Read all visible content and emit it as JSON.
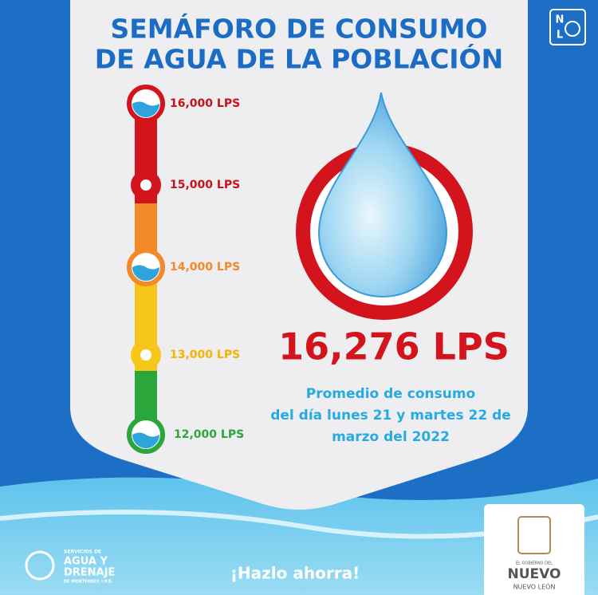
{
  "header": {
    "title_lines": [
      "SEMÁFORO DE CONSUMO",
      "DE AGUA DE LA POBLACIÓN"
    ],
    "corner_logo": [
      "N",
      "L"
    ]
  },
  "levels": [
    "16,000 LPS",
    "15,000 LPS",
    "14,000 LPS",
    "13,000 LPS",
    "12,000 LPS"
  ],
  "reading": {
    "value": "16,276 LPS",
    "description_lines": [
      "Promedio de consumo",
      "del día lunes 21 y martes 22 de",
      "marzo del 2022"
    ]
  },
  "footer": {
    "slogan": "¡Hazlo ahorra!",
    "agency_logo": [
      "SERVICIOS DE",
      "AGUA Y",
      "DRENAJE",
      "DE MONTERREY, I.P.D."
    ],
    "government_logo": [
      "EL GOBIERNO DEL",
      "NUEVO",
      "NUEVO LEÓN"
    ]
  }
}
